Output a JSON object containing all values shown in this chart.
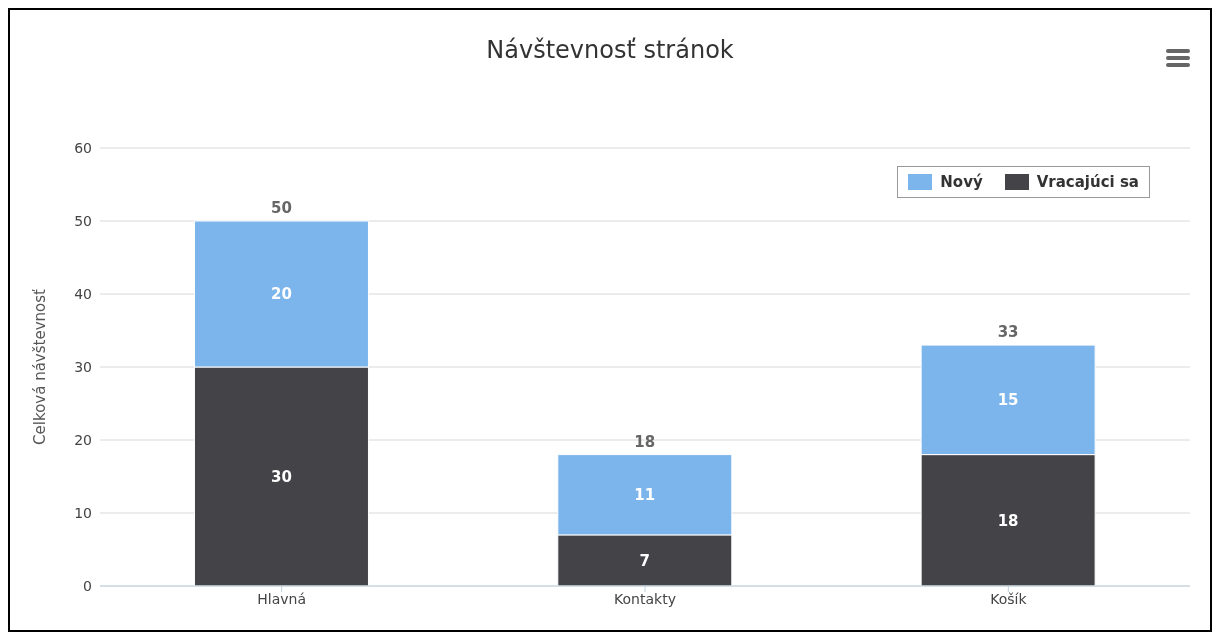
{
  "chart_data": {
    "type": "bar",
    "title": "Návštevnosť stránok",
    "ylabel": "Celková návštevnosť",
    "categories": [
      "Hlavná",
      "Kontakty",
      "Košík"
    ],
    "series": [
      {
        "name": "Vracajúci sa",
        "color": "#434348",
        "values": [
          30,
          7,
          18
        ]
      },
      {
        "name": "Nový",
        "color": "#7cb5ec",
        "values": [
          20,
          11,
          15
        ]
      }
    ],
    "stacked": true,
    "data_labels": true,
    "totals": [
      "50",
      "18",
      "33"
    ],
    "ylim": [
      0,
      60
    ],
    "yticks": [
      0,
      10,
      20,
      30,
      40,
      50,
      60
    ],
    "grid": "y",
    "legend": "top right"
  }
}
